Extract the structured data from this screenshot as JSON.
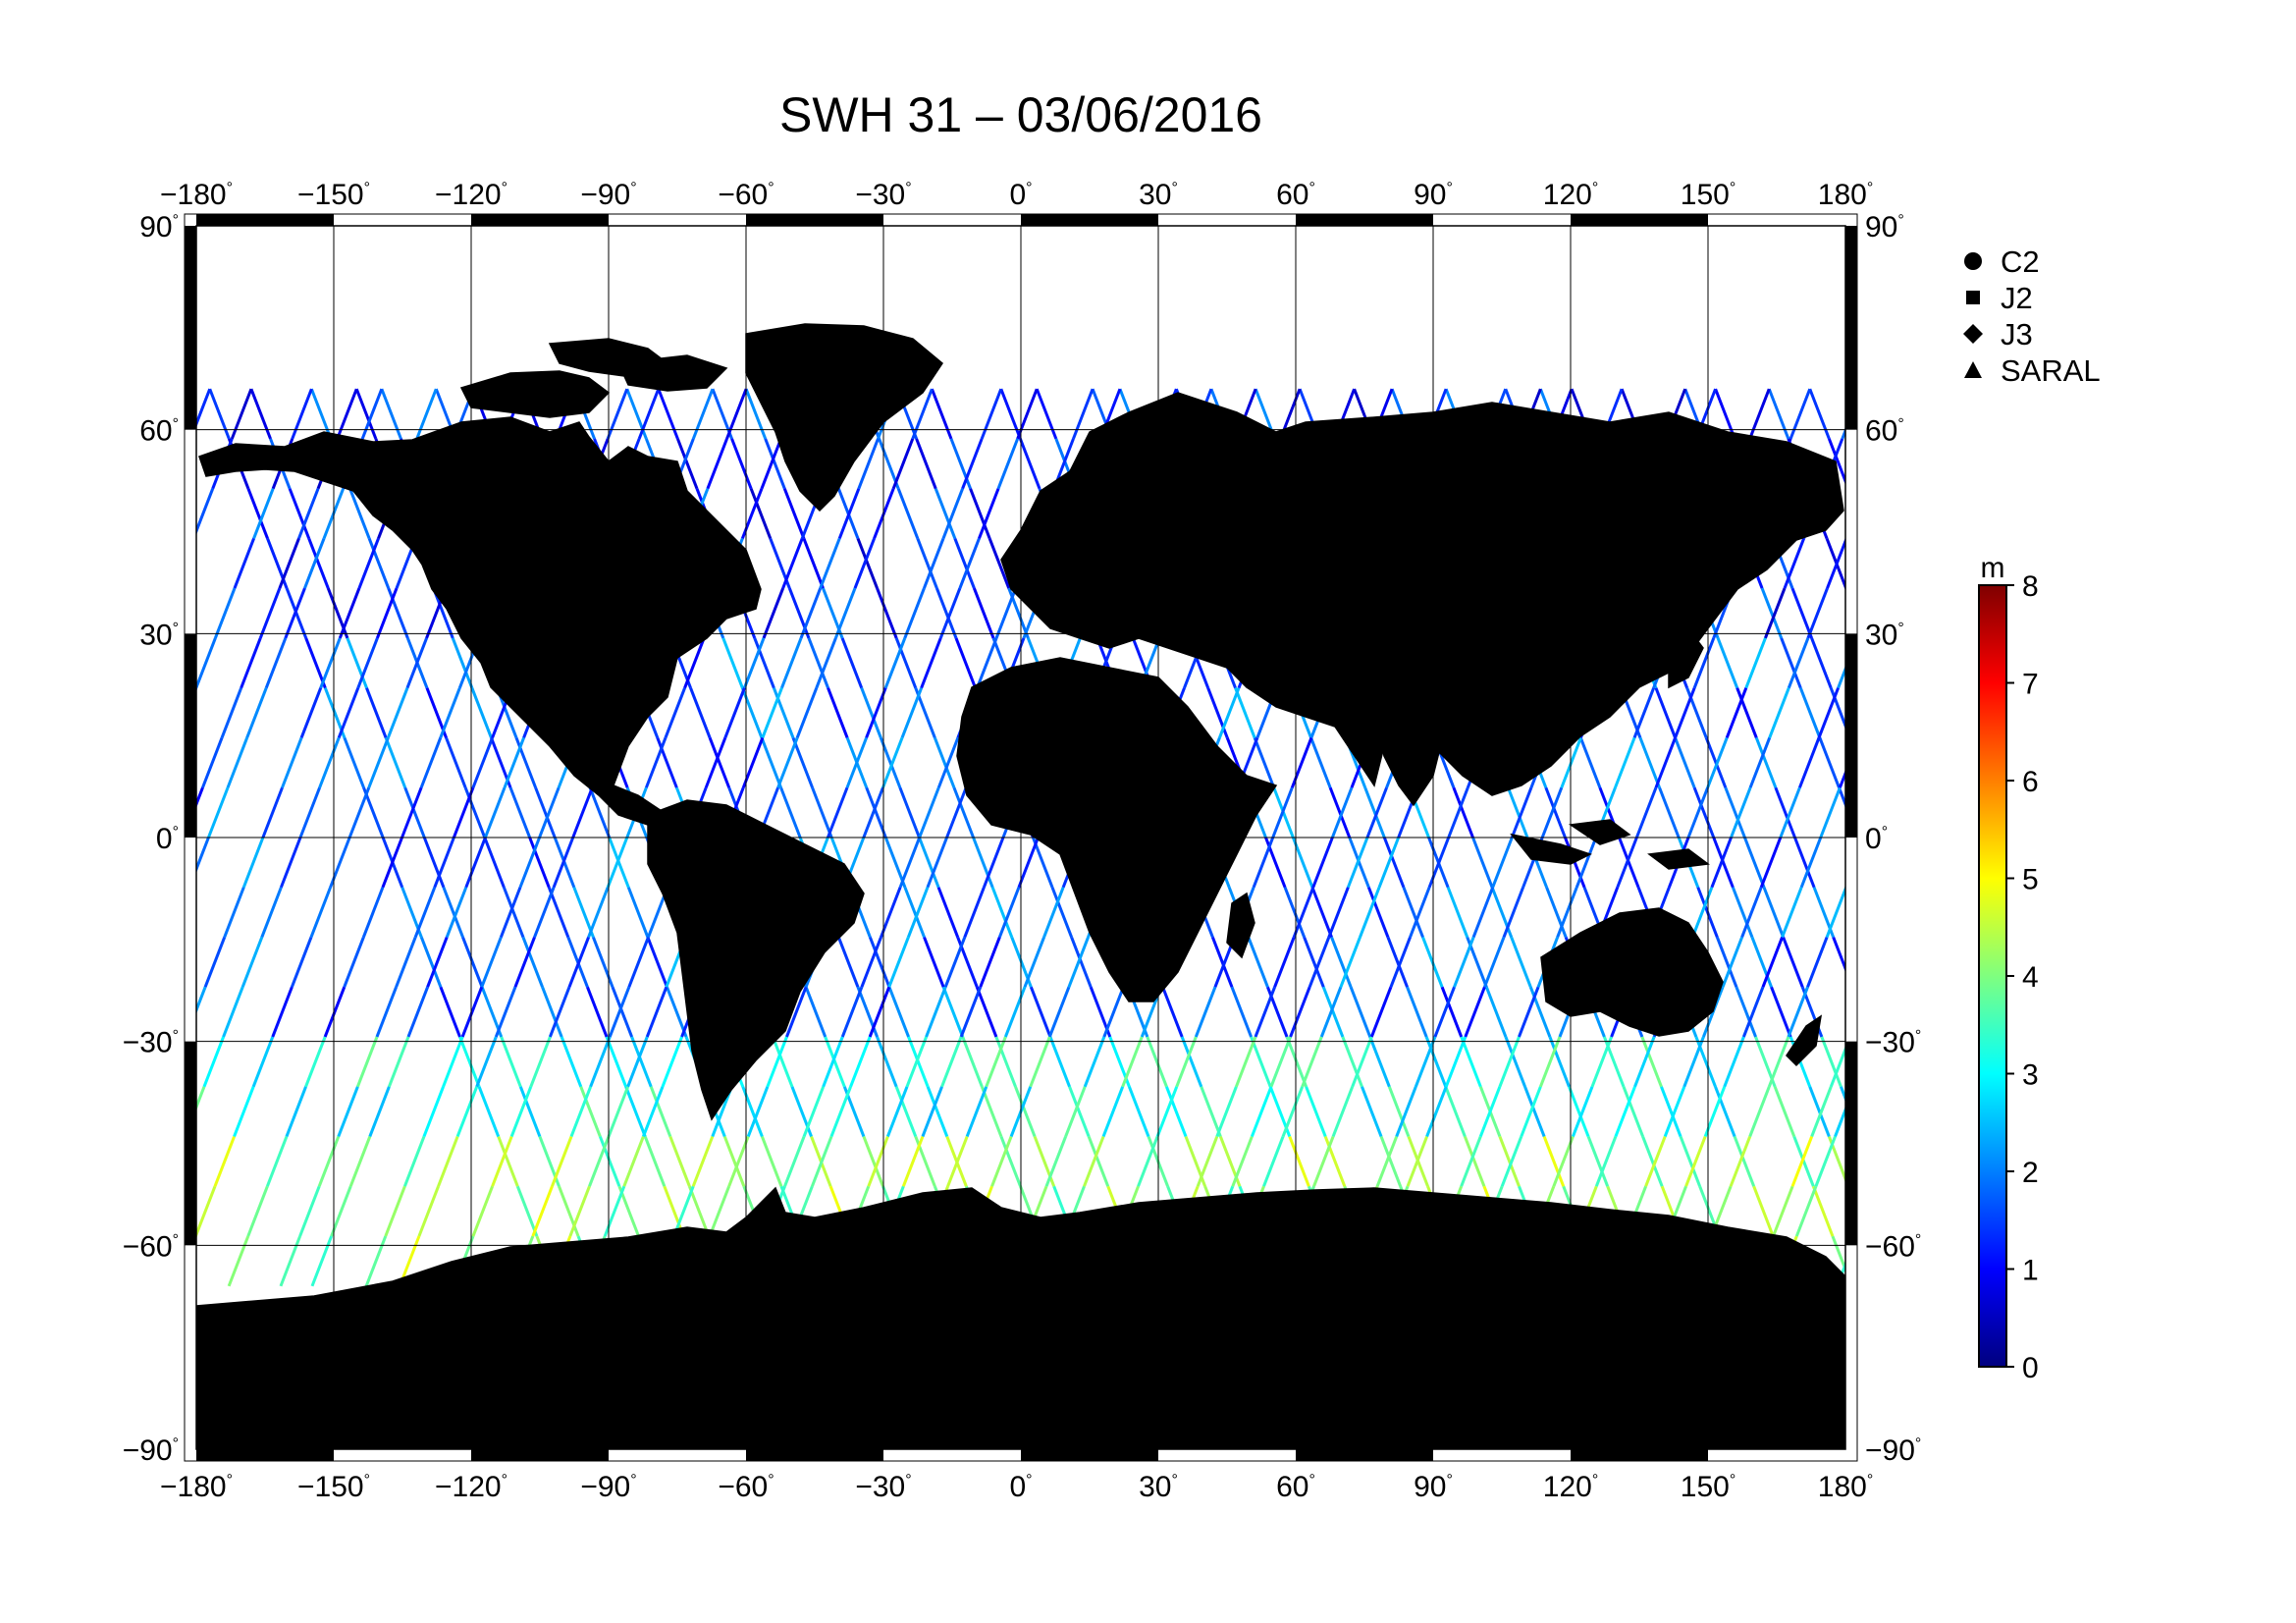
{
  "title": "SWH 31 – 03/06/2016",
  "map": {
    "projection": "plate carree",
    "lon_range": [
      -180,
      180
    ],
    "lat_range": [
      -90,
      90
    ],
    "lon_ticks": [
      -180,
      -150,
      -120,
      -90,
      -60,
      -30,
      0,
      30,
      60,
      90,
      120,
      150,
      180
    ],
    "lat_ticks": [
      90,
      60,
      30,
      0,
      -30,
      -60,
      -90
    ],
    "lon_tick_labels": [
      "−180",
      "−150",
      "−120",
      "−90",
      "−60",
      "−30",
      "0",
      "30",
      "60",
      "90",
      "120",
      "150",
      "180"
    ],
    "lat_tick_labels": [
      "90",
      "60",
      "30",
      "0",
      "−30",
      "−60",
      "−90"
    ],
    "degree_symbol": "°",
    "grid": true,
    "land_color": "#bebebe",
    "ocean_color": "#ffffff"
  },
  "legend": {
    "placement": "top-right",
    "items": [
      {
        "label": "C2",
        "symbol": "circle"
      },
      {
        "label": "J2",
        "symbol": "square"
      },
      {
        "label": "J3",
        "symbol": "diamond"
      },
      {
        "label": "SARAL",
        "symbol": "triangle"
      }
    ]
  },
  "colorbar": {
    "unit": "m",
    "min": 0,
    "max": 8,
    "ticks": [
      "0",
      "1",
      "2",
      "3",
      "4",
      "5",
      "6",
      "7",
      "8"
    ],
    "colormap": [
      "#00007f",
      "#0000ff",
      "#007fff",
      "#00ffff",
      "#7fff7f",
      "#ffff00",
      "#ff7f00",
      "#ff0000",
      "#7f0000"
    ]
  },
  "swh_zones": [
    {
      "lat_min": 30,
      "lat_max": 66,
      "level_m": 1.2
    },
    {
      "lat_min": -30,
      "lat_max": 30,
      "level_m": 1.6
    },
    {
      "lat_min": -45,
      "lat_max": -30,
      "level_m": 3.0
    },
    {
      "lat_min": -66,
      "lat_max": -45,
      "level_m": 4.0
    }
  ]
}
